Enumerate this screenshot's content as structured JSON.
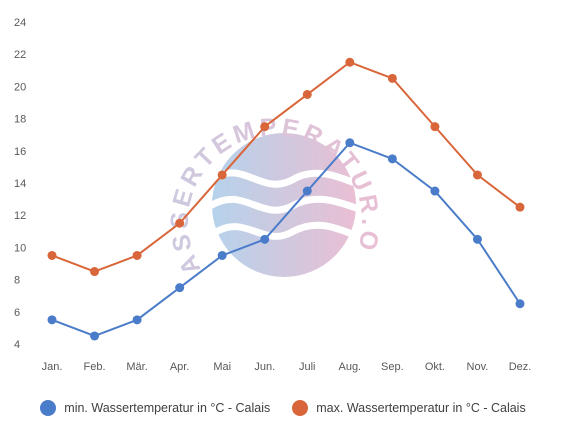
{
  "chart_data": {
    "type": "line",
    "title": "",
    "xlabel": "",
    "ylabel": "",
    "categories": [
      "Jan.",
      "Feb.",
      "Mär.",
      "Apr.",
      "Mai",
      "Jun.",
      "Juli",
      "Aug.",
      "Sep.",
      "Okt.",
      "Nov.",
      "Dez."
    ],
    "yticks": [
      "4",
      "6",
      "8",
      "10",
      "12",
      "14",
      "16",
      "18",
      "20",
      "22",
      "24"
    ],
    "ylim": [
      4,
      24
    ],
    "grid": false,
    "legend_position": "bottom",
    "series": [
      {
        "name": "min. Wassertemperatur in °C - Calais",
        "color": "#4a7cc9",
        "values": [
          5.5,
          4.5,
          5.5,
          7.5,
          9.5,
          10.5,
          13.5,
          16.5,
          15.5,
          13.5,
          10.5,
          6.5
        ]
      },
      {
        "name": "max. Wassertemperatur in °C - Calais",
        "color": "#d9663a",
        "values": [
          9.5,
          8.5,
          9.5,
          11.5,
          14.5,
          17.5,
          19.5,
          21.5,
          20.5,
          17.5,
          14.5,
          12.5
        ]
      }
    ]
  },
  "watermark": {
    "text": "WASSERTEMPERATUR.ORG",
    "color_left": "#a9cbe8",
    "color_right": "#e6b4cc"
  }
}
